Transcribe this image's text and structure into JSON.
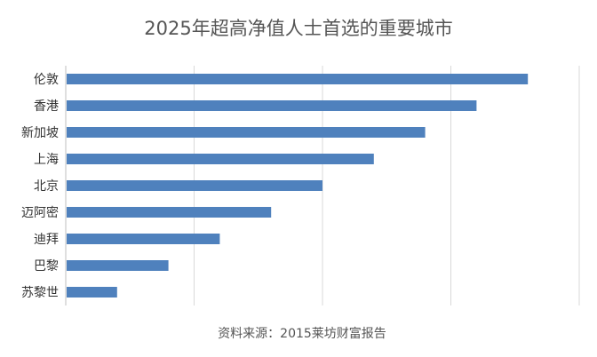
{
  "chart_data": {
    "type": "bar",
    "orientation": "horizontal",
    "title": "2025年超高净值人士首选的重要城市",
    "categories": [
      "伦敦",
      "香港",
      "新加坡",
      "上海",
      "北京",
      "迈阿密",
      "迪拜",
      "巴黎",
      "苏黎世"
    ],
    "values": [
      9,
      8,
      7,
      6,
      5,
      4,
      3,
      2,
      1
    ],
    "xlim": [
      0,
      10
    ],
    "grid": true,
    "xlabel": "",
    "ylabel": "",
    "bar_color": "#4f81bd"
  },
  "source_note": "资料来源：2015莱坊财富报告"
}
